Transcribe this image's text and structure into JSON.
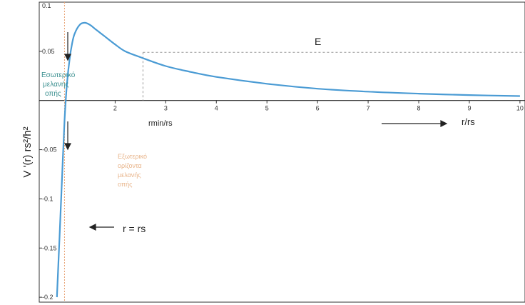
{
  "chart_data": {
    "type": "line",
    "ylabel": "V '(r) rs²/h²",
    "xlabel": "r/rs",
    "xlim": [
      0.5,
      10.1
    ],
    "ylim": [
      -0.205,
      0.1
    ],
    "x_ticks": [
      2,
      3,
      4,
      5,
      6,
      7,
      8,
      9,
      10
    ],
    "x_tick_labels": [
      "2",
      "3",
      "4",
      "5",
      "6",
      "7",
      "8",
      "9",
      "10"
    ],
    "y_ticks": [
      0.1,
      0.05,
      -0.05,
      -0.1,
      -0.15,
      -0.2
    ],
    "y_tick_labels": [
      "0.1",
      "0.05",
      "-0.05",
      "-0.1",
      "-0.15",
      "-0.2"
    ],
    "series": [
      {
        "x": [
          0.85,
          0.9,
          0.95,
          1.0,
          1.05,
          1.1,
          1.15,
          1.2,
          1.3,
          1.4,
          1.5,
          1.6,
          1.7,
          1.8,
          2.0,
          2.2,
          2.5,
          3.0,
          3.5,
          4.0,
          5.0,
          6.0,
          7.0,
          8.0,
          9.0,
          10.0
        ],
        "y": [
          -0.2,
          -0.14,
          -0.08,
          -0.02,
          0.018,
          0.042,
          0.058,
          0.068,
          0.077,
          0.079,
          0.077,
          0.073,
          0.069,
          0.065,
          0.057,
          0.05,
          0.044,
          0.035,
          0.029,
          0.024,
          0.017,
          0.012,
          0.009,
          0.007,
          0.0055,
          0.0045
        ],
        "color": "#4a9bd4"
      }
    ],
    "energy_level": {
      "label": "E",
      "y": 0.049,
      "x_start": 2.55
    },
    "rmin_x": 2.55,
    "rs_x": 1.0
  },
  "annotations": {
    "inside_text": [
      "Εσωτερικό",
      "μελανής",
      "οπής"
    ],
    "outside_text": [
      "Εξωτερικό",
      "ορίζοντα",
      "μελανής",
      "οπής"
    ],
    "rmin_label": "rmin/rs",
    "r_eq_label": "r = rs",
    "energy_label": "E",
    "x_axis_label": "r/rs"
  },
  "colors": {
    "curve": "#4a9bd4",
    "inside_text": "#3a8f8f",
    "outside_text": "#e8b48a",
    "rs_line": "#e8a070",
    "energy_line": "#999999"
  }
}
